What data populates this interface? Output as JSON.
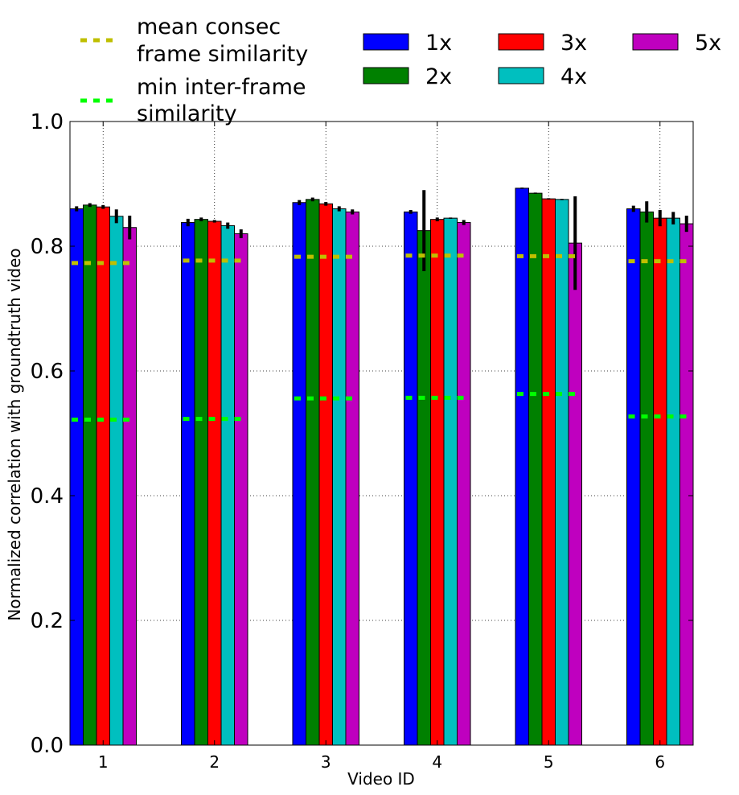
{
  "chart_data": {
    "type": "bar",
    "title": "",
    "xlabel": "Video ID",
    "ylabel": "Normalized correlation with groundtruth video",
    "ylim": [
      0.0,
      1.0
    ],
    "yticks": [
      "0.0",
      "0.2",
      "0.4",
      "0.6",
      "0.8",
      "1.0"
    ],
    "categories": [
      "1",
      "2",
      "3",
      "4",
      "5",
      "6"
    ],
    "grid": true,
    "legend_placement": "above plot",
    "series": [
      {
        "name": "1x",
        "color": "#0000ff",
        "values": [
          0.86,
          0.838,
          0.87,
          0.855,
          0.893,
          0.86
        ],
        "errors": [
          0.004,
          0.006,
          0.004,
          0.003,
          0.001,
          0.005
        ]
      },
      {
        "name": "2x",
        "color": "#008000",
        "values": [
          0.866,
          0.843,
          0.875,
          0.825,
          0.885,
          0.855
        ],
        "errors": [
          0.003,
          0.003,
          0.003,
          0.065,
          0.001,
          0.017
        ]
      },
      {
        "name": "3x",
        "color": "#ff0000",
        "values": [
          0.863,
          0.84,
          0.868,
          0.843,
          0.876,
          0.845
        ],
        "errors": [
          0.003,
          0.002,
          0.003,
          0.003,
          0.001,
          0.013
        ]
      },
      {
        "name": "4x",
        "color": "#00bfbf",
        "values": [
          0.848,
          0.833,
          0.86,
          0.845,
          0.875,
          0.845
        ],
        "errors": [
          0.011,
          0.005,
          0.004,
          0.001,
          0.001,
          0.01
        ]
      },
      {
        "name": "5x",
        "color": "#bf00bf",
        "values": [
          0.83,
          0.82,
          0.855,
          0.838,
          0.805,
          0.836
        ],
        "errors": [
          0.019,
          0.007,
          0.004,
          0.004,
          0.075,
          0.013
        ]
      }
    ],
    "reference_lines": [
      {
        "name": "mean consec frame similarity",
        "color": "#bfbf00",
        "style": "dashed",
        "values": [
          0.773,
          0.777,
          0.783,
          0.785,
          0.784,
          0.776
        ]
      },
      {
        "name": "min inter-frame similarity",
        "color": "#00ff00",
        "style": "dashed",
        "values": [
          0.522,
          0.523,
          0.556,
          0.557,
          0.563,
          0.527
        ]
      }
    ]
  }
}
